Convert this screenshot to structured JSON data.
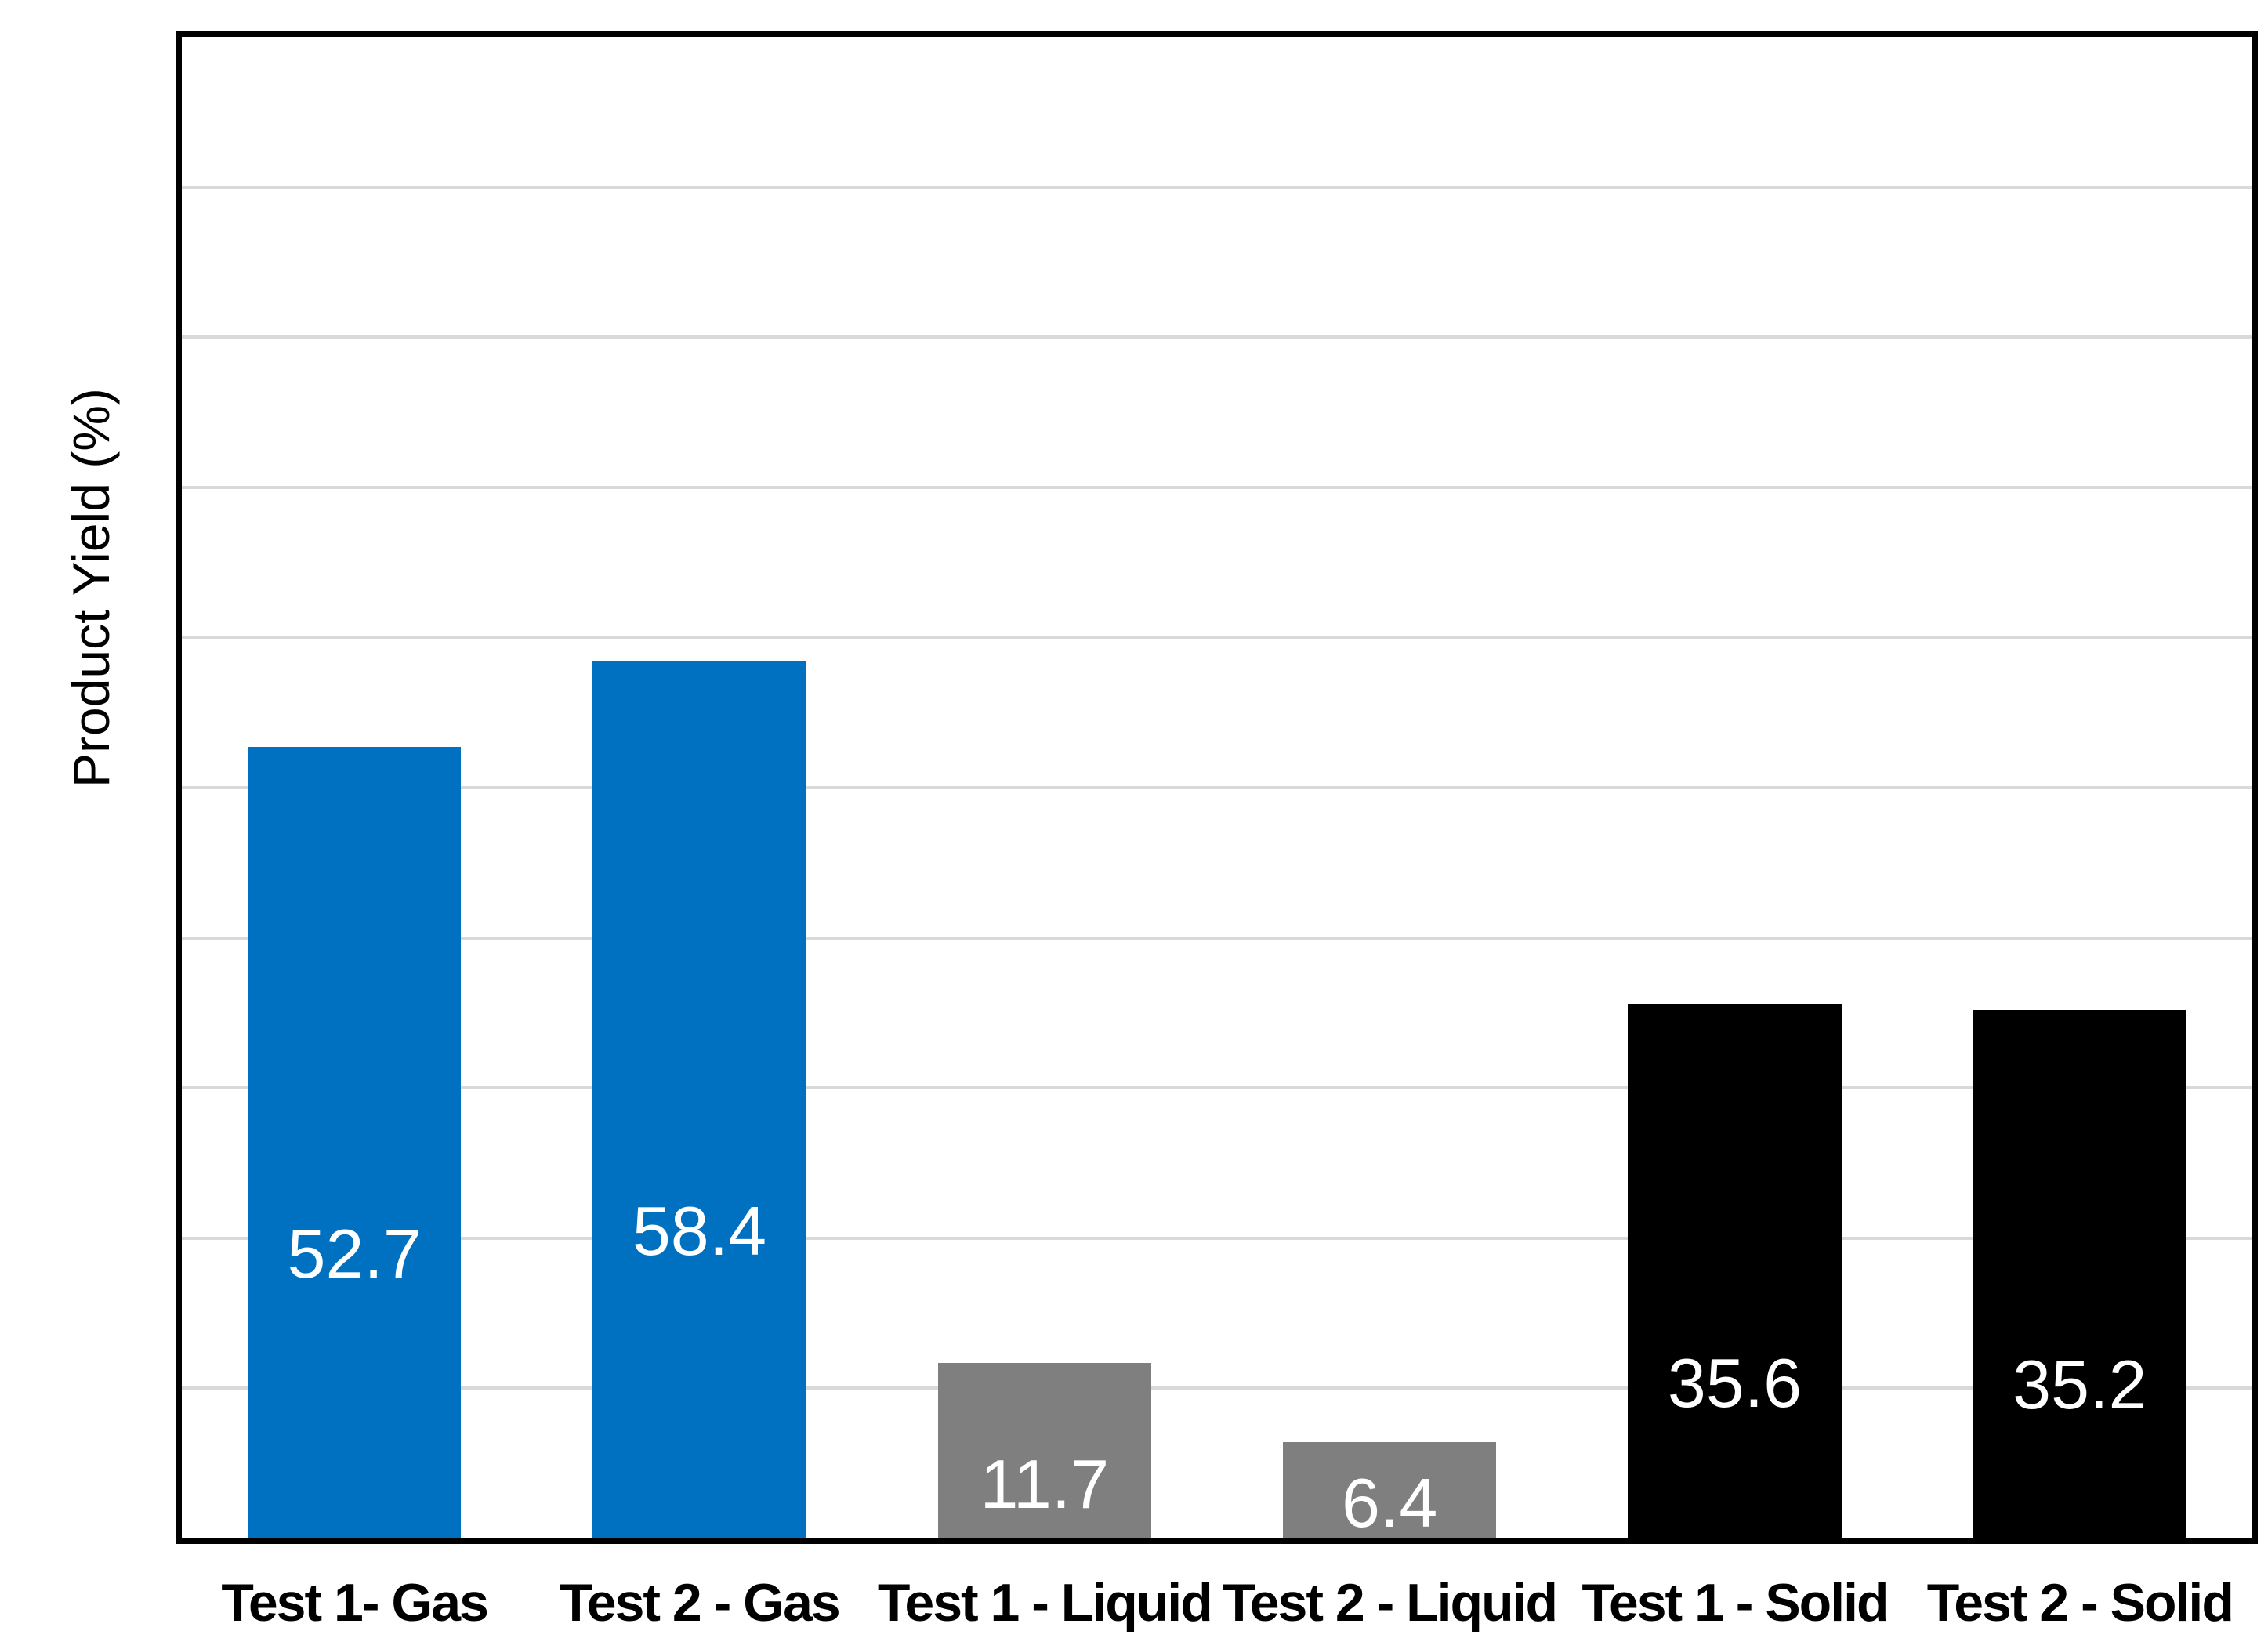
{
  "chart_data": {
    "type": "bar",
    "title": "",
    "xlabel": "",
    "ylabel": "Product Yield (%)",
    "ylim": [
      0,
      100
    ],
    "grid": {
      "visible": true,
      "interval": 10,
      "color": "#D9D9D9"
    },
    "legend_position": "none",
    "y_tick_labels_visible": false,
    "categories": [
      "Test 1- Gas",
      "Test 2 - Gas",
      "Test 1 - Liquid",
      "Test 2 - Liquid",
      "Test 1 - Solid",
      "Test 2 - Solid"
    ],
    "series": [
      {
        "name": "Product Yield",
        "values": [
          52.7,
          58.4,
          11.7,
          6.4,
          35.6,
          35.2
        ],
        "data_labels": [
          "52.7",
          "58.4",
          "11.7",
          "6.4",
          "35.6",
          "35.2"
        ],
        "bar_colors": [
          "#0070C0",
          "#0070C0",
          "#7F7F7F",
          "#7F7F7F",
          "#000000",
          "#000000"
        ]
      }
    ],
    "colors": {
      "gas_bar": "#0070C0",
      "liquid_bar": "#7F7F7F",
      "solid_bar": "#000000",
      "data_label_text": "#FFFFFF",
      "axis_and_border": "#000000",
      "gridline": "#D9D9D9",
      "background": "#FFFFFF"
    }
  }
}
